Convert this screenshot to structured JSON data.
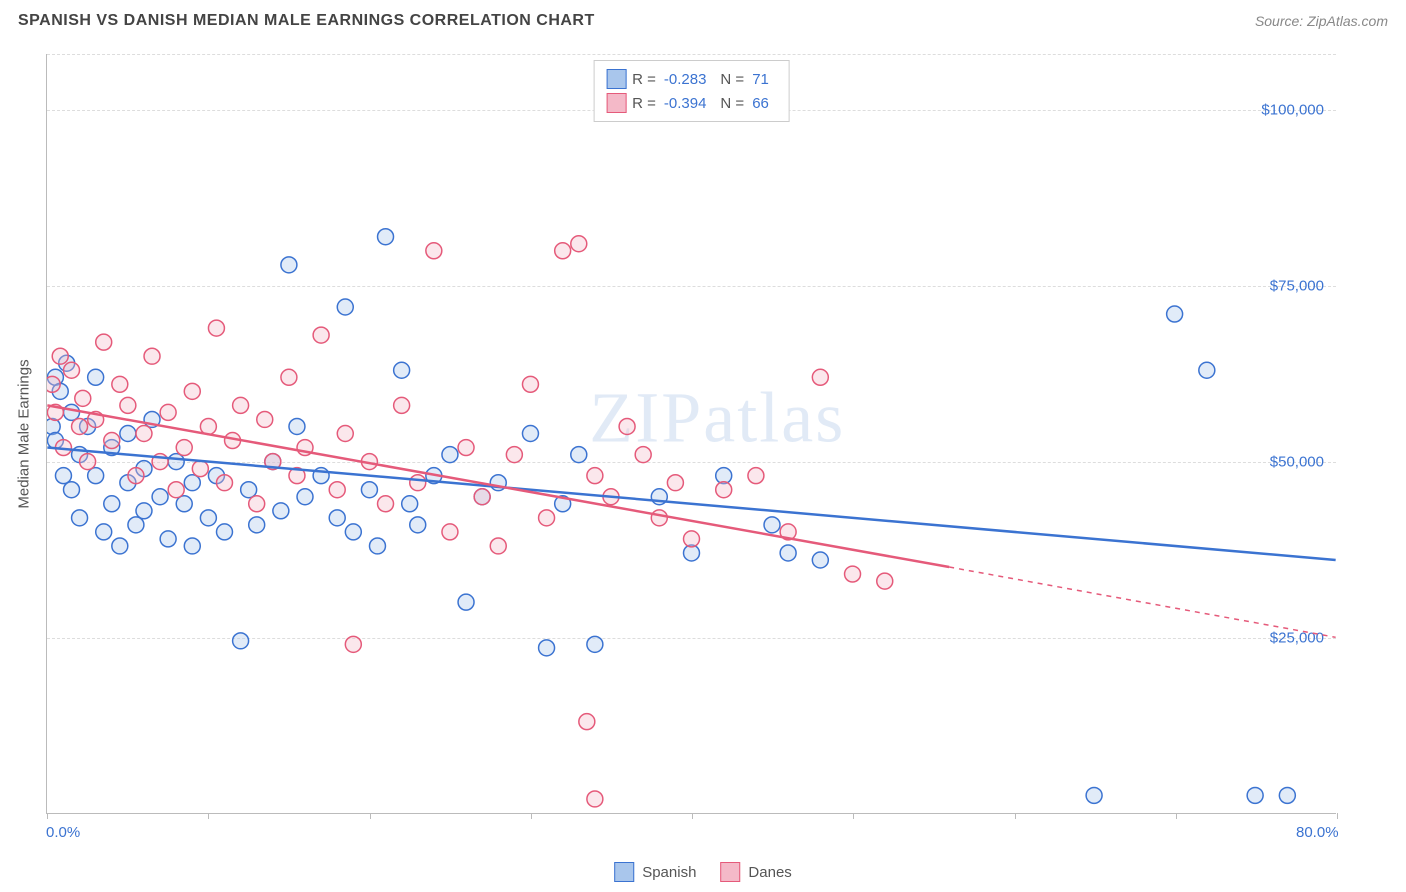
{
  "title": "SPANISH VS DANISH MEDIAN MALE EARNINGS CORRELATION CHART",
  "source_label": "Source: ZipAtlas.com",
  "watermark": "ZIPatlas",
  "ylabel": "Median Male Earnings",
  "chart": {
    "type": "scatter",
    "xlim": [
      0,
      80
    ],
    "ylim": [
      0,
      108000
    ],
    "x_tick_positions": [
      0,
      10,
      20,
      30,
      40,
      50,
      60,
      70,
      80
    ],
    "x_axis_labels": [
      {
        "pos": 0,
        "text": "0.0%"
      },
      {
        "pos": 80,
        "text": "80.0%"
      }
    ],
    "y_gridlines": [
      25000,
      50000,
      75000,
      100000,
      108000
    ],
    "y_tick_labels": [
      {
        "pos": 25000,
        "text": "$25,000"
      },
      {
        "pos": 50000,
        "text": "$50,000"
      },
      {
        "pos": 75000,
        "text": "$75,000"
      },
      {
        "pos": 100000,
        "text": "$100,000"
      }
    ],
    "background_color": "#ffffff",
    "grid_color": "#dddddd",
    "axis_color": "#bbbbbb",
    "marker_radius": 8,
    "marker_fill_opacity": 0.35,
    "marker_stroke_width": 1.5,
    "line_width": 2.5,
    "series": [
      {
        "name": "Spanish",
        "color_stroke": "#3b73d1",
        "color_fill": "#a9c6ec",
        "R": "-0.283",
        "N": "71",
        "regression": {
          "x1": 0,
          "y1": 52000,
          "x2": 80,
          "y2": 36000,
          "dash_from_x": 80
        },
        "points": [
          [
            0.3,
            55000
          ],
          [
            0.5,
            62000
          ],
          [
            0.5,
            53000
          ],
          [
            0.8,
            60000
          ],
          [
            1.0,
            48000
          ],
          [
            1.2,
            64000
          ],
          [
            1.5,
            57000
          ],
          [
            1.5,
            46000
          ],
          [
            2.0,
            51000
          ],
          [
            2.0,
            42000
          ],
          [
            2.5,
            55000
          ],
          [
            3.0,
            48000
          ],
          [
            3.0,
            62000
          ],
          [
            3.5,
            40000
          ],
          [
            4.0,
            44000
          ],
          [
            4.0,
            52000
          ],
          [
            4.5,
            38000
          ],
          [
            5.0,
            47000
          ],
          [
            5.0,
            54000
          ],
          [
            5.5,
            41000
          ],
          [
            6.0,
            49000
          ],
          [
            6.0,
            43000
          ],
          [
            6.5,
            56000
          ],
          [
            7.0,
            45000
          ],
          [
            7.5,
            39000
          ],
          [
            8.0,
            50000
          ],
          [
            8.5,
            44000
          ],
          [
            9.0,
            47000
          ],
          [
            9.0,
            38000
          ],
          [
            10.0,
            42000
          ],
          [
            10.5,
            48000
          ],
          [
            11.0,
            40000
          ],
          [
            12.0,
            24500
          ],
          [
            12.5,
            46000
          ],
          [
            13.0,
            41000
          ],
          [
            14.0,
            50000
          ],
          [
            14.5,
            43000
          ],
          [
            15.0,
            78000
          ],
          [
            15.5,
            55000
          ],
          [
            16.0,
            45000
          ],
          [
            17.0,
            48000
          ],
          [
            18.0,
            42000
          ],
          [
            18.5,
            72000
          ],
          [
            19.0,
            40000
          ],
          [
            20.0,
            46000
          ],
          [
            20.5,
            38000
          ],
          [
            21.0,
            82000
          ],
          [
            22.0,
            63000
          ],
          [
            22.5,
            44000
          ],
          [
            23.0,
            41000
          ],
          [
            24.0,
            48000
          ],
          [
            25.0,
            51000
          ],
          [
            26.0,
            30000
          ],
          [
            27.0,
            45000
          ],
          [
            28.0,
            47000
          ],
          [
            30.0,
            54000
          ],
          [
            31.0,
            23500
          ],
          [
            32.0,
            44000
          ],
          [
            33.0,
            51000
          ],
          [
            34.0,
            24000
          ],
          [
            38.0,
            45000
          ],
          [
            40.0,
            37000
          ],
          [
            42.0,
            48000
          ],
          [
            45.0,
            41000
          ],
          [
            46.0,
            37000
          ],
          [
            48.0,
            36000
          ],
          [
            65.0,
            2500
          ],
          [
            70.0,
            71000
          ],
          [
            72.0,
            63000
          ],
          [
            75.0,
            2500
          ],
          [
            77.0,
            2500
          ]
        ]
      },
      {
        "name": "Danes",
        "color_stroke": "#e55a7a",
        "color_fill": "#f4b9c8",
        "R": "-0.394",
        "N": "66",
        "regression": {
          "x1": 0,
          "y1": 58000,
          "x2": 56,
          "y2": 35000,
          "dash_from_x": 56,
          "dash_x2": 80,
          "dash_y2": 25000
        },
        "points": [
          [
            0.3,
            61000
          ],
          [
            0.5,
            57000
          ],
          [
            0.8,
            65000
          ],
          [
            1.0,
            52000
          ],
          [
            1.5,
            63000
          ],
          [
            2.0,
            55000
          ],
          [
            2.2,
            59000
          ],
          [
            2.5,
            50000
          ],
          [
            3.0,
            56000
          ],
          [
            3.5,
            67000
          ],
          [
            4.0,
            53000
          ],
          [
            4.5,
            61000
          ],
          [
            5.0,
            58000
          ],
          [
            5.5,
            48000
          ],
          [
            6.0,
            54000
          ],
          [
            6.5,
            65000
          ],
          [
            7.0,
            50000
          ],
          [
            7.5,
            57000
          ],
          [
            8.0,
            46000
          ],
          [
            8.5,
            52000
          ],
          [
            9.0,
            60000
          ],
          [
            9.5,
            49000
          ],
          [
            10.0,
            55000
          ],
          [
            10.5,
            69000
          ],
          [
            11.0,
            47000
          ],
          [
            11.5,
            53000
          ],
          [
            12.0,
            58000
          ],
          [
            13.0,
            44000
          ],
          [
            13.5,
            56000
          ],
          [
            14.0,
            50000
          ],
          [
            15.0,
            62000
          ],
          [
            15.5,
            48000
          ],
          [
            16.0,
            52000
          ],
          [
            17.0,
            68000
          ],
          [
            18.0,
            46000
          ],
          [
            18.5,
            54000
          ],
          [
            19.0,
            24000
          ],
          [
            20.0,
            50000
          ],
          [
            21.0,
            44000
          ],
          [
            22.0,
            58000
          ],
          [
            23.0,
            47000
          ],
          [
            24.0,
            80000
          ],
          [
            25.0,
            40000
          ],
          [
            26.0,
            52000
          ],
          [
            27.0,
            45000
          ],
          [
            28.0,
            38000
          ],
          [
            29.0,
            51000
          ],
          [
            30.0,
            61000
          ],
          [
            31.0,
            42000
          ],
          [
            32.0,
            80000
          ],
          [
            33.0,
            81000
          ],
          [
            34.0,
            48000
          ],
          [
            36.0,
            55000
          ],
          [
            38.0,
            42000
          ],
          [
            40.0,
            39000
          ],
          [
            42.0,
            46000
          ],
          [
            44.0,
            48000
          ],
          [
            46.0,
            40000
          ],
          [
            48.0,
            62000
          ],
          [
            50.0,
            34000
          ],
          [
            52.0,
            33000
          ],
          [
            33.5,
            13000
          ],
          [
            34.0,
            2000
          ],
          [
            35.0,
            45000
          ],
          [
            37.0,
            51000
          ],
          [
            39.0,
            47000
          ]
        ]
      }
    ]
  },
  "legend_bottom": [
    {
      "label": "Spanish",
      "fill": "#a9c6ec",
      "stroke": "#3b73d1"
    },
    {
      "label": "Danes",
      "fill": "#f4b9c8",
      "stroke": "#e55a7a"
    }
  ],
  "colors": {
    "title": "#444444",
    "source": "#888888",
    "axis_label": "#555555",
    "tick_label": "#3b73d1"
  }
}
